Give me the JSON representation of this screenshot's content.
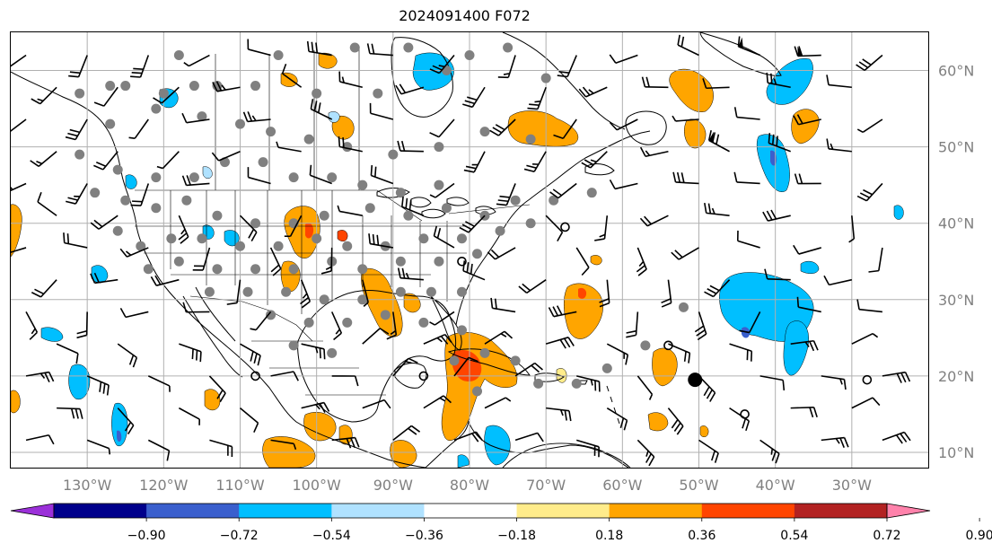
{
  "title": "2024091400 F072",
  "map": {
    "projection": "lat-lon",
    "lon_range": [
      -140,
      -20
    ],
    "lat_range": [
      8,
      65
    ],
    "gridlines": true,
    "lon_ticks": [
      {
        "value": -130,
        "label": "130°W"
      },
      {
        "value": -120,
        "label": "120°W"
      },
      {
        "value": -110,
        "label": "110°W"
      },
      {
        "value": -100,
        "label": "100°W"
      },
      {
        "value": -90,
        "label": "90°W"
      },
      {
        "value": -80,
        "label": "80°W"
      },
      {
        "value": -70,
        "label": "70°W"
      },
      {
        "value": -60,
        "label": "60°W"
      },
      {
        "value": -50,
        "label": "50°W"
      },
      {
        "value": -40,
        "label": "40°W"
      },
      {
        "value": -30,
        "label": "30°W"
      }
    ],
    "lat_ticks": [
      {
        "value": 60,
        "label": "60°N"
      },
      {
        "value": 50,
        "label": "50°N"
      },
      {
        "value": 40,
        "label": "40°N"
      },
      {
        "value": 30,
        "label": "30°N"
      },
      {
        "value": 20,
        "label": "20°N"
      },
      {
        "value": 10,
        "label": "10°N"
      }
    ],
    "gridline_color": "#b0b0b0",
    "station_marker_color": "#808080",
    "station_markers": [
      [
        -131,
        57
      ],
      [
        -127,
        58
      ],
      [
        -120,
        57
      ],
      [
        -116,
        58
      ],
      [
        -113,
        58
      ],
      [
        -108,
        58
      ],
      [
        -100,
        57
      ],
      [
        -92,
        57
      ],
      [
        -83,
        60
      ],
      [
        -80,
        62
      ],
      [
        -70,
        59
      ],
      [
        -127,
        53
      ],
      [
        -121,
        55
      ],
      [
        -115,
        54
      ],
      [
        -110,
        53
      ],
      [
        -106,
        52
      ],
      [
        -101,
        51
      ],
      [
        -96,
        50
      ],
      [
        -90,
        49
      ],
      [
        -84,
        50
      ],
      [
        -78,
        52
      ],
      [
        -72,
        51
      ],
      [
        -131,
        49
      ],
      [
        -126,
        47
      ],
      [
        -121,
        46
      ],
      [
        -116,
        46
      ],
      [
        -112,
        48
      ],
      [
        -107,
        48
      ],
      [
        -103,
        46
      ],
      [
        -98,
        46
      ],
      [
        -94,
        45
      ],
      [
        -89,
        44
      ],
      [
        -84,
        45
      ],
      [
        -129,
        44
      ],
      [
        -125,
        43
      ],
      [
        -121,
        42
      ],
      [
        -117,
        43
      ],
      [
        -113,
        41
      ],
      [
        -108,
        40
      ],
      [
        -103,
        40
      ],
      [
        -99,
        41
      ],
      [
        -93,
        42
      ],
      [
        -88,
        41
      ],
      [
        -83,
        42
      ],
      [
        -78,
        41
      ],
      [
        -74,
        43
      ],
      [
        -69,
        43
      ],
      [
        -64,
        44
      ],
      [
        -126,
        39
      ],
      [
        -123,
        37
      ],
      [
        -119,
        38
      ],
      [
        -115,
        38
      ],
      [
        -110,
        37
      ],
      [
        -105,
        37
      ],
      [
        -100,
        38
      ],
      [
        -96,
        37
      ],
      [
        -91,
        37
      ],
      [
        -86,
        38
      ],
      [
        -81,
        38
      ],
      [
        -76,
        39
      ],
      [
        -72,
        40
      ],
      [
        -122,
        34
      ],
      [
        -118,
        35
      ],
      [
        -113,
        34
      ],
      [
        -108,
        34
      ],
      [
        -103,
        34
      ],
      [
        -98,
        35
      ],
      [
        -94,
        34
      ],
      [
        -89,
        35
      ],
      [
        -84,
        35
      ],
      [
        -79,
        36
      ],
      [
        -114,
        31
      ],
      [
        -109,
        31
      ],
      [
        -104,
        31
      ],
      [
        -99,
        30
      ],
      [
        -94,
        30
      ],
      [
        -89,
        31
      ],
      [
        -85,
        31
      ],
      [
        -81,
        31
      ],
      [
        -106,
        28
      ],
      [
        -101,
        27
      ],
      [
        -96,
        27
      ],
      [
        -91,
        28
      ],
      [
        -86,
        27
      ],
      [
        -81,
        26
      ],
      [
        -103,
        24
      ],
      [
        -98,
        23
      ],
      [
        -82,
        22
      ],
      [
        -78,
        23
      ],
      [
        -74,
        22
      ],
      [
        -79,
        18
      ],
      [
        -71,
        19
      ],
      [
        -66,
        19
      ],
      [
        -62,
        21
      ],
      [
        -57,
        24
      ],
      [
        -52,
        29
      ],
      [
        -125,
        58
      ],
      [
        -118,
        62
      ],
      [
        -105,
        62
      ],
      [
        -95,
        63
      ],
      [
        -88,
        63
      ],
      [
        -75,
        63
      ]
    ],
    "large_dot": [
      -50.5,
      19.5
    ],
    "open_circles": [
      [
        -67.5,
        39.5
      ],
      [
        -81,
        35
      ],
      [
        -108,
        20
      ],
      [
        -54,
        24
      ],
      [
        -86,
        20
      ],
      [
        -44,
        15
      ],
      [
        -28,
        19.5
      ]
    ],
    "coastline_color": "#000000",
    "barb_color": "#000000"
  },
  "colorbar": {
    "colors": [
      "#9b30d9",
      "#00008b",
      "#3a5fcd",
      "#00bfff",
      "#b0e2ff",
      "#ffffff",
      "#ffec8b",
      "#ffa500",
      "#ff4500",
      "#b22222",
      "#ff82ab"
    ],
    "under_color": "#9b30d9",
    "over_color": "#ff82ab",
    "tick_labels": [
      "−0.90",
      "−0.72",
      "−0.54",
      "−0.36",
      "−0.18",
      "0.18",
      "0.36",
      "0.54",
      "0.72",
      "0.90"
    ],
    "extend": "both"
  },
  "fields": {
    "colors": {
      "orange": "#ffa500",
      "dark_orange": "#ff4500",
      "red": "#b22222",
      "sky": "#00bfff",
      "pale_blue": "#b0e2ff",
      "royal": "#3a5fcd"
    }
  }
}
